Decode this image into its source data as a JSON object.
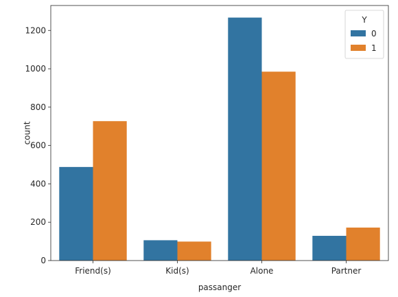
{
  "chart_data": {
    "type": "bar",
    "categories": [
      "Friend(s)",
      "Kid(s)",
      "Alone",
      "Partner"
    ],
    "series": [
      {
        "name": "0",
        "color": "#3274a1",
        "values": [
          488,
          106,
          1267,
          129
        ]
      },
      {
        "name": "1",
        "color": "#e1812c",
        "values": [
          727,
          99,
          985,
          172
        ]
      }
    ],
    "xlabel": "passanger",
    "ylabel": "count",
    "ylim": [
      0,
      1330
    ],
    "yticks": [
      0,
      200,
      400,
      600,
      800,
      1000,
      1200
    ],
    "legend_title": "Y",
    "legend_placement": "top-right",
    "grid": false
  }
}
